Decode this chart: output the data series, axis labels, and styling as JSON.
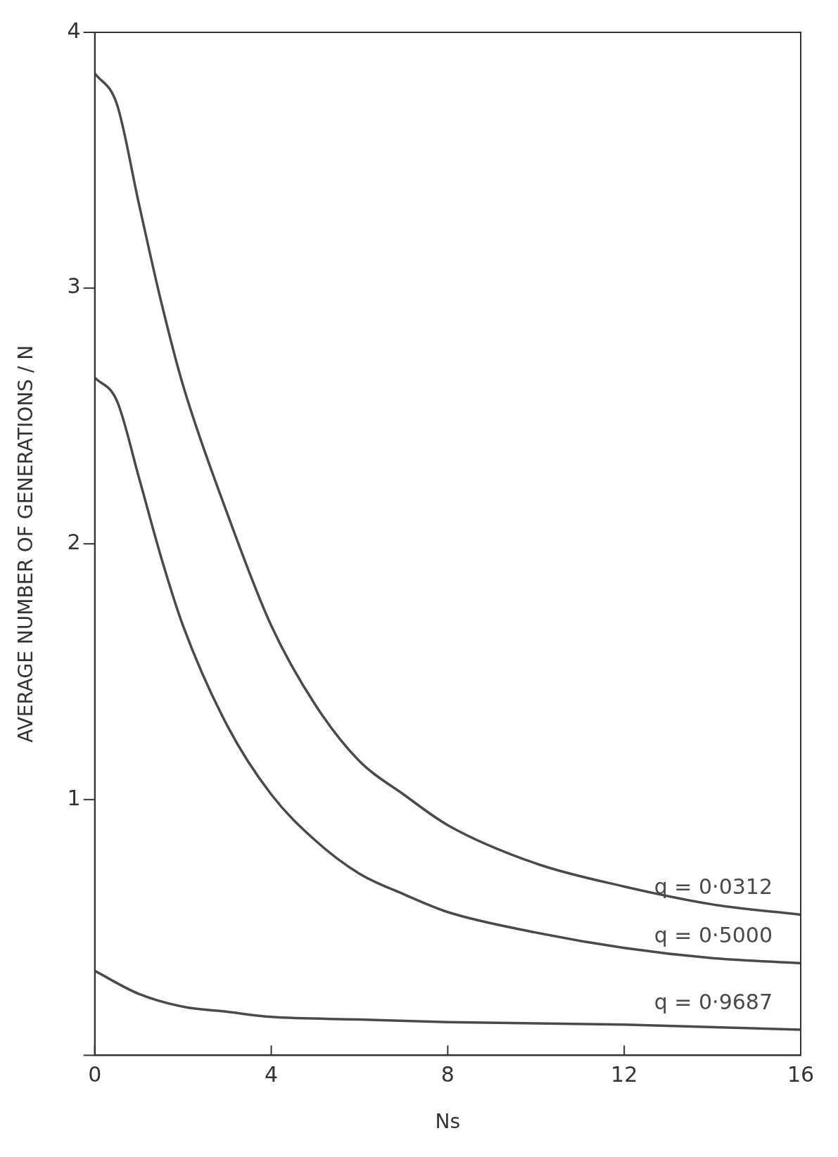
{
  "chart_data": {
    "type": "line",
    "xlabel": "Ns",
    "ylabel": "AVERAGE NUMBER OF GENERATIONS / N",
    "xlim": [
      0,
      16
    ],
    "ylim": [
      0,
      4
    ],
    "xticks": [
      0,
      4,
      8,
      12,
      16
    ],
    "yticks": [
      {
        "value": 0,
        "label": null
      },
      1,
      2,
      3,
      4
    ],
    "grid": false,
    "legend": false,
    "marker": "none",
    "line_style": "solid",
    "series": [
      {
        "name": "q = 0·0312",
        "color": "#4a4a4a",
        "x": [
          0,
          0.5,
          1,
          1.5,
          2,
          3,
          4,
          5,
          6,
          7,
          8,
          10,
          12,
          14,
          16
        ],
        "values": [
          3.84,
          3.72,
          3.33,
          2.95,
          2.62,
          2.12,
          1.68,
          1.37,
          1.15,
          1.02,
          0.9,
          0.75,
          0.66,
          0.59,
          0.55
        ]
      },
      {
        "name": "q = 0·5000",
        "color": "#4a4a4a",
        "x": [
          0,
          0.5,
          1,
          1.5,
          2,
          3,
          4,
          5,
          6,
          7,
          8,
          10,
          12,
          14,
          16
        ],
        "values": [
          2.65,
          2.56,
          2.26,
          1.95,
          1.68,
          1.29,
          1.02,
          0.84,
          0.71,
          0.63,
          0.56,
          0.48,
          0.42,
          0.38,
          0.36
        ]
      },
      {
        "name": "q = 0·9687",
        "color": "#4a4a4a",
        "x": [
          0,
          1,
          2,
          3,
          4,
          6,
          8,
          12,
          16
        ],
        "values": [
          0.33,
          0.24,
          0.19,
          0.17,
          0.15,
          0.14,
          0.13,
          0.12,
          0.1
        ]
      }
    ]
  }
}
